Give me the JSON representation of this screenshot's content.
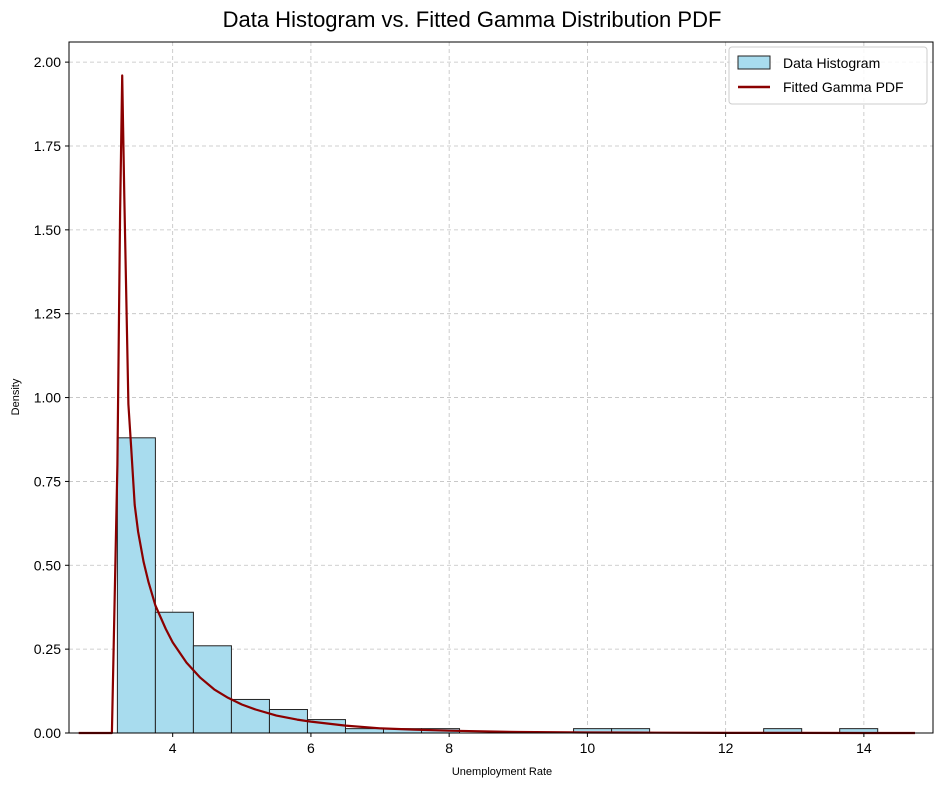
{
  "chart_data": {
    "type": "bar",
    "title": "Data Histogram vs. Fitted Gamma Distribution PDF",
    "xlabel": "Unemployment Rate",
    "ylabel": "Density",
    "xlim": [
      2.5,
      15.0
    ],
    "ylim": [
      0.0,
      2.06
    ],
    "x_ticks": [
      4,
      6,
      8,
      10,
      12,
      14
    ],
    "y_ticks": [
      0.0,
      0.25,
      0.5,
      0.75,
      1.0,
      1.25,
      1.5,
      1.75,
      2.0
    ],
    "grid": true,
    "legend_position": "top-right",
    "colors": {
      "hist_fill": "#a8dcee",
      "hist_edge": "#222222",
      "pdf_line": "#8b0000",
      "grid": "#c0c0c0"
    },
    "series": [
      {
        "name": "Data Histogram",
        "type": "histogram",
        "bins": [
          {
            "x0": 3.2,
            "x1": 3.75,
            "density": 0.88
          },
          {
            "x0": 3.75,
            "x1": 4.3,
            "density": 0.36
          },
          {
            "x0": 4.3,
            "x1": 4.85,
            "density": 0.26
          },
          {
            "x0": 4.85,
            "x1": 5.4,
            "density": 0.1
          },
          {
            "x0": 5.4,
            "x1": 5.95,
            "density": 0.07
          },
          {
            "x0": 5.95,
            "x1": 6.5,
            "density": 0.04
          },
          {
            "x0": 6.5,
            "x1": 7.05,
            "density": 0.013
          },
          {
            "x0": 7.05,
            "x1": 7.6,
            "density": 0.013
          },
          {
            "x0": 7.6,
            "x1": 8.15,
            "density": 0.013
          },
          {
            "x0": 9.8,
            "x1": 10.35,
            "density": 0.013
          },
          {
            "x0": 10.35,
            "x1": 10.9,
            "density": 0.013
          },
          {
            "x0": 12.55,
            "x1": 13.1,
            "density": 0.013
          },
          {
            "x0": 13.65,
            "x1": 14.2,
            "density": 0.013
          }
        ]
      },
      {
        "name": "Fitted Gamma PDF",
        "type": "line",
        "x": [
          2.64,
          3.12,
          3.2,
          3.24,
          3.27,
          3.3,
          3.36,
          3.4,
          3.45,
          3.5,
          3.58,
          3.65,
          3.75,
          3.9,
          4.0,
          4.2,
          4.4,
          4.6,
          4.8,
          5.0,
          5.2,
          5.5,
          5.8,
          6.0,
          6.5,
          7.0,
          7.5,
          8.0,
          9.0,
          10.0,
          11.0,
          12.0,
          13.0,
          14.0,
          14.74
        ],
        "y": [
          0.0,
          0.0,
          0.8,
          1.55,
          1.96,
          1.6,
          0.98,
          0.85,
          0.68,
          0.6,
          0.51,
          0.45,
          0.38,
          0.31,
          0.27,
          0.21,
          0.165,
          0.13,
          0.105,
          0.085,
          0.07,
          0.052,
          0.04,
          0.034,
          0.022,
          0.014,
          0.01,
          0.007,
          0.003,
          0.0015,
          0.0008,
          0.0004,
          0.0002,
          0.0001,
          0.0
        ]
      }
    ]
  }
}
